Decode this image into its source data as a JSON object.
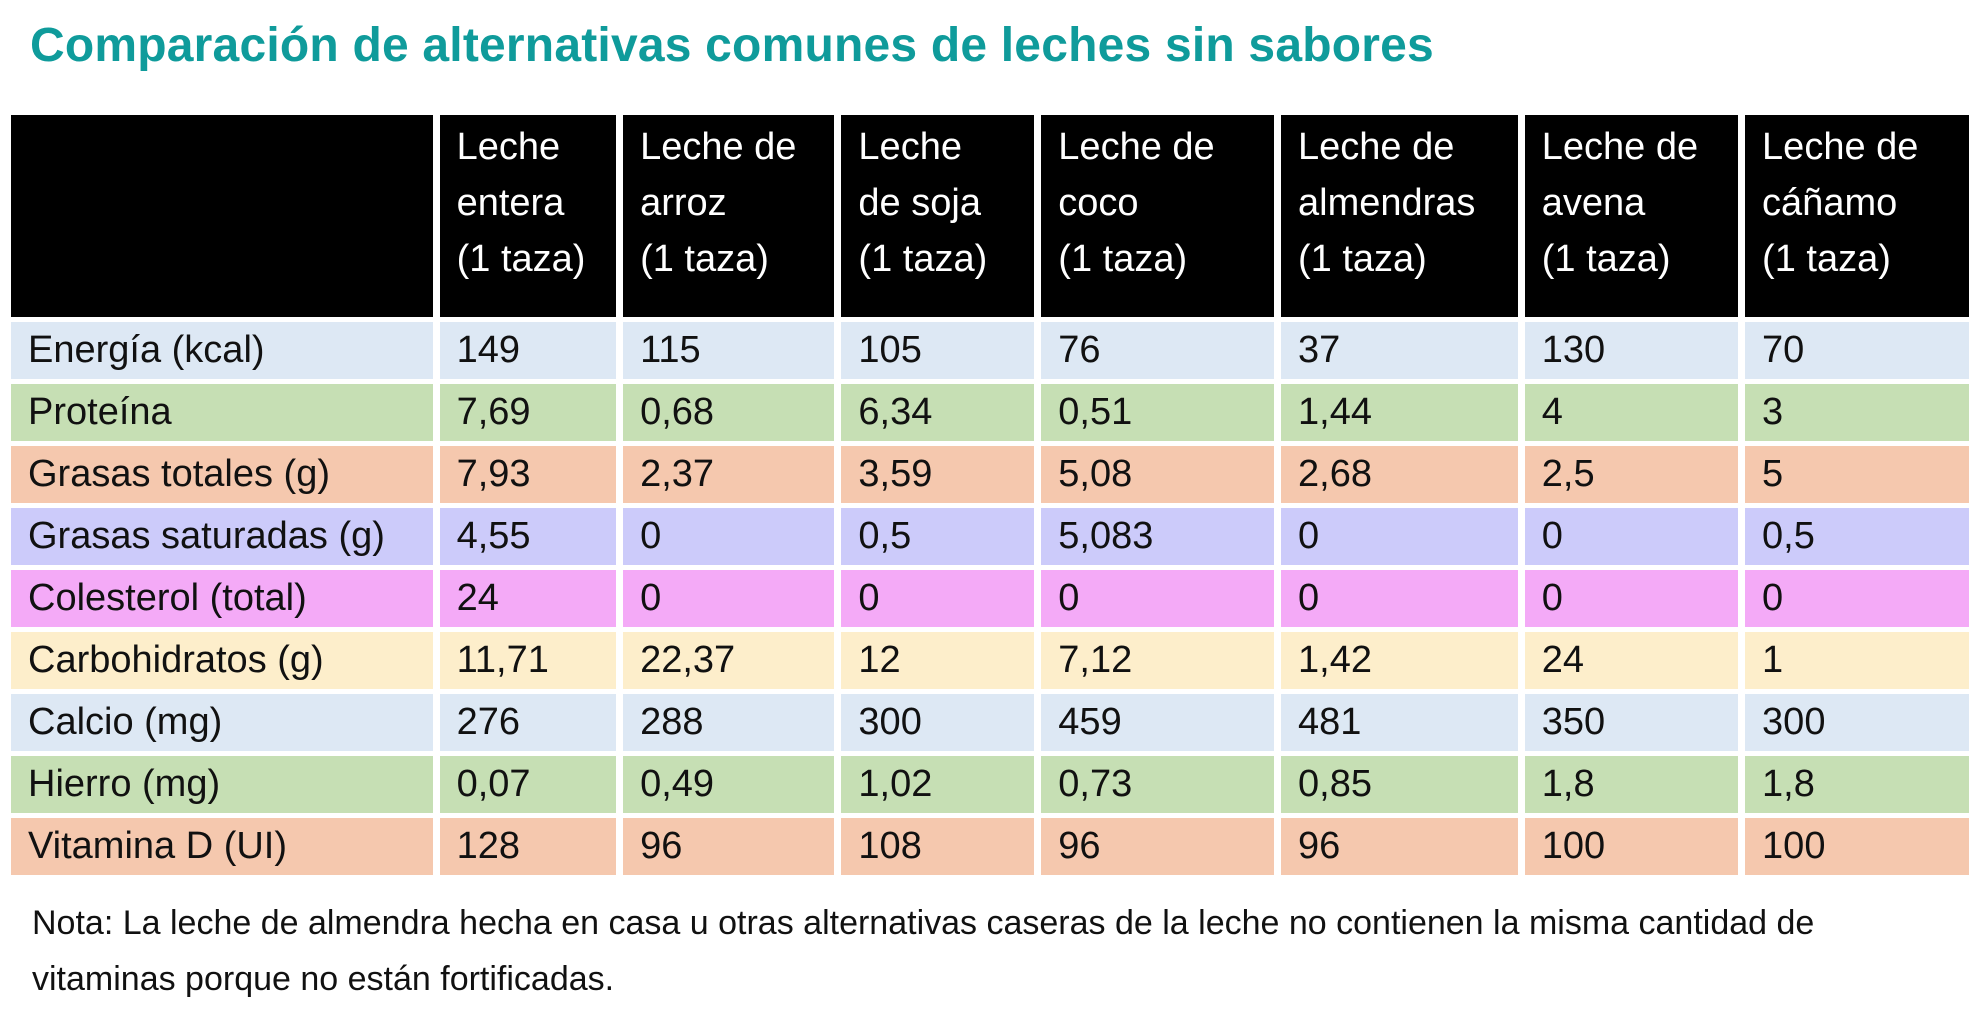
{
  "title": "Comparación de alternativas comunes de leches sin sabores",
  "colors": {
    "title": "#0f9b9b",
    "header_bg": "#000000",
    "header_text": "#ffffff",
    "energia": "#dde8f4",
    "proteina": "#c6dfb4",
    "grasas_totales": "#f5c8ae",
    "grasas_saturadas": "#cccbfa",
    "colesterol": "#f4aaf7",
    "carbohidratos": "#fdeecb",
    "calcio": "#dde8f4",
    "hierro": "#c6dfb4",
    "vitamina_d": "#f5c8ae"
  },
  "table": {
    "corner": "",
    "columns": [
      {
        "lines": [
          "Leche",
          "entera",
          "(1 taza)"
        ]
      },
      {
        "lines": [
          "Leche de",
          "arroz",
          "(1 taza)"
        ]
      },
      {
        "lines": [
          "Leche",
          "de soja",
          "(1 taza)"
        ]
      },
      {
        "lines": [
          "Leche de",
          "coco",
          "(1 taza)"
        ]
      },
      {
        "lines": [
          "Leche de",
          "almendras",
          "(1 taza)"
        ]
      },
      {
        "lines": [
          "Leche de",
          "avena",
          "(1 taza)"
        ]
      },
      {
        "lines": [
          "Leche de",
          "cáñamo",
          "(1 taza)"
        ]
      }
    ],
    "rows": [
      {
        "label": "Energía (kcal)",
        "values": [
          "149",
          "115",
          "105",
          "76",
          "37",
          "130",
          "70"
        ]
      },
      {
        "label": "Proteína",
        "values": [
          "7,69",
          "0,68",
          "6,34",
          "0,51",
          "1,44",
          "4",
          "3"
        ]
      },
      {
        "label": "Grasas totales (g)",
        "values": [
          "7,93",
          "2,37",
          "3,59",
          "5,08",
          "2,68",
          "2,5",
          "5"
        ]
      },
      {
        "label": "Grasas saturadas (g)",
        "values": [
          "4,55",
          "0",
          "0,5",
          "5,083",
          "0",
          "0",
          "0,5"
        ]
      },
      {
        "label": "Colesterol (total)",
        "values": [
          "24",
          "0",
          "0",
          "0",
          "0",
          "0",
          "0"
        ]
      },
      {
        "label": "Carbohidratos (g)",
        "values": [
          "11,71",
          "22,37",
          "12",
          "7,12",
          "1,42",
          "24",
          "1"
        ]
      },
      {
        "label": "Calcio (mg)",
        "values": [
          "276",
          "288",
          "300",
          "459",
          "481",
          "350",
          "300"
        ]
      },
      {
        "label": "Hierro (mg)",
        "values": [
          "0,07",
          "0,49",
          "1,02",
          "0,73",
          "0,85",
          "1,8",
          "1,8"
        ]
      },
      {
        "label": "Vitamina D (UI)",
        "values": [
          "128",
          "96",
          "108",
          "96",
          "96",
          "100",
          "100"
        ]
      }
    ]
  },
  "note": "Nota: La leche de almendra hecha en casa u otras alternativas caseras de la leche no contienen la misma cantidad de vitaminas porque no están fortificadas."
}
